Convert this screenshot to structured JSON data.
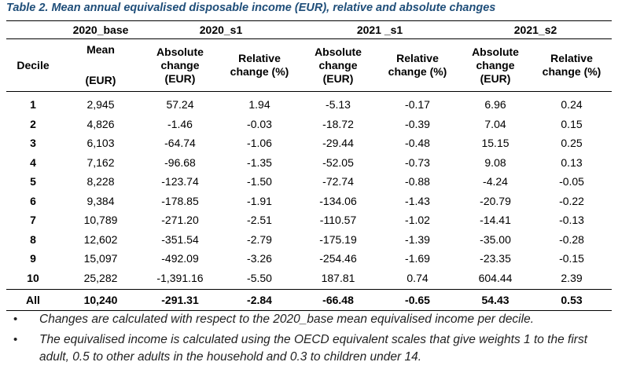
{
  "caption": "Table 2. Mean annual equivalised disposable income (EUR), relative and absolute changes",
  "groups": {
    "base": "2020_base",
    "s1_2020": "2020_s1",
    "s1_2021": "2021 _s1",
    "s2_2021": "2021_s2"
  },
  "headers": {
    "decile": "Decile",
    "mean_line1": "Mean",
    "mean_line2": "(EUR)",
    "abs_line1": "Absolute",
    "abs_line2": "change",
    "abs_line3": "(EUR)",
    "rel_line1": "Relative",
    "rel_line2": "change (%)"
  },
  "rows": [
    {
      "decile": "1",
      "mean": "2,945",
      "a1": "57.24",
      "r1": "1.94",
      "a2": "-5.13",
      "r2": "-0.17",
      "a3": "6.96",
      "r3": "0.24"
    },
    {
      "decile": "2",
      "mean": "4,826",
      "a1": "-1.46",
      "r1": "-0.03",
      "a2": "-18.72",
      "r2": "-0.39",
      "a3": "7.04",
      "r3": "0.15"
    },
    {
      "decile": "3",
      "mean": "6,103",
      "a1": "-64.74",
      "r1": "-1.06",
      "a2": "-29.44",
      "r2": "-0.48",
      "a3": "15.15",
      "r3": "0.25"
    },
    {
      "decile": "4",
      "mean": "7,162",
      "a1": "-96.68",
      "r1": "-1.35",
      "a2": "-52.05",
      "r2": "-0.73",
      "a3": "9.08",
      "r3": "0.13"
    },
    {
      "decile": "5",
      "mean": "8,228",
      "a1": "-123.74",
      "r1": "-1.50",
      "a2": "-72.74",
      "r2": "-0.88",
      "a3": "-4.24",
      "r3": "-0.05"
    },
    {
      "decile": "6",
      "mean": "9,384",
      "a1": "-178.85",
      "r1": "-1.91",
      "a2": "-134.06",
      "r2": "-1.43",
      "a3": "-20.79",
      "r3": "-0.22"
    },
    {
      "decile": "7",
      "mean": "10,789",
      "a1": "-271.20",
      "r1": "-2.51",
      "a2": "-110.57",
      "r2": "-1.02",
      "a3": "-14.41",
      "r3": "-0.13"
    },
    {
      "decile": "8",
      "mean": "12,602",
      "a1": "-351.54",
      "r1": "-2.79",
      "a2": "-175.19",
      "r2": "-1.39",
      "a3": "-35.00",
      "r3": "-0.28"
    },
    {
      "decile": "9",
      "mean": "15,097",
      "a1": "-492.09",
      "r1": "-3.26",
      "a2": "-254.46",
      "r2": "-1.69",
      "a3": "-23.35",
      "r3": "-0.15"
    },
    {
      "decile": "10",
      "mean": "25,282",
      "a1": "-1,391.16",
      "r1": "-5.50",
      "a2": "187.81",
      "r2": "0.74",
      "a3": "604.44",
      "r3": "2.39"
    }
  ],
  "total": {
    "decile": "All",
    "mean": "10,240",
    "a1": "-291.31",
    "r1": "-2.84",
    "a2": "-66.48",
    "r2": "-0.65",
    "a3": "54.43",
    "r3": "0.53"
  },
  "notes": [
    {
      "bullet": "•",
      "text": "Changes are calculated with respect to the 2020_base mean equivalised income per decile."
    },
    {
      "bullet": "•",
      "text": "The equivalised income is calculated using the OECD equivalent scales that give weights 1 to the first adult, 0.5 to other adults in the household and 0.3 to children under 14."
    }
  ]
}
